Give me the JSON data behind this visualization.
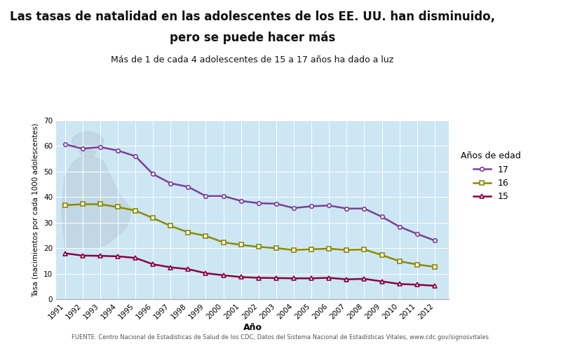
{
  "title_line1": "Las tasas de natalidad en las adolescentes de los EE. UU. han disminuido,",
  "title_line2": "pero se puede hacer más",
  "subtitle": "Más de 1 de cada 4 adolescentes de 15 a 17 años ha dado a luz",
  "xlabel": "Año",
  "ylabel": "Tasa (nacimientos por cada 1000 adolescentes)",
  "source": "FUENTE: Centro Nacional de Estadísticas de Salud de los CDC, Datos del Sistema Nacional de Estadísticas Vitales, www.cdc.gov/signosvitales",
  "legend_title": "Años de edad",
  "years": [
    1991,
    1992,
    1993,
    1994,
    1995,
    1996,
    1997,
    1998,
    1999,
    2000,
    2001,
    2002,
    2003,
    2004,
    2005,
    2006,
    2007,
    2008,
    2009,
    2010,
    2011,
    2012
  ],
  "data_17": [
    60.7,
    58.9,
    59.6,
    58.2,
    56.0,
    49.0,
    45.4,
    44.0,
    40.4,
    40.4,
    38.5,
    37.6,
    37.4,
    35.7,
    36.4,
    36.7,
    35.5,
    35.5,
    32.3,
    28.4,
    25.6,
    23.0
  ],
  "data_16": [
    36.8,
    37.2,
    37.2,
    36.1,
    34.7,
    31.8,
    28.7,
    26.2,
    24.8,
    22.3,
    21.3,
    20.5,
    20.0,
    19.3,
    19.6,
    19.8,
    19.3,
    19.5,
    17.3,
    14.9,
    13.6,
    12.7
  ],
  "data_15": [
    18.0,
    17.1,
    17.0,
    16.8,
    16.2,
    13.7,
    12.5,
    11.8,
    10.2,
    9.4,
    8.7,
    8.4,
    8.3,
    8.2,
    8.2,
    8.4,
    7.8,
    8.0,
    7.0,
    6.0,
    5.7,
    5.3
  ],
  "color_17": "#7b3f96",
  "color_16": "#8a8a00",
  "color_15": "#8b0040",
  "bg_color": "#cce6f4",
  "fig_bg": "#ffffff",
  "ylim": [
    0,
    70
  ],
  "yticks": [
    0,
    10,
    20,
    30,
    40,
    50,
    60,
    70
  ],
  "title_fontsize": 12,
  "subtitle_fontsize": 9,
  "tick_fontsize": 7.5,
  "ylabel_fontsize": 7.5,
  "xlabel_fontsize": 9
}
